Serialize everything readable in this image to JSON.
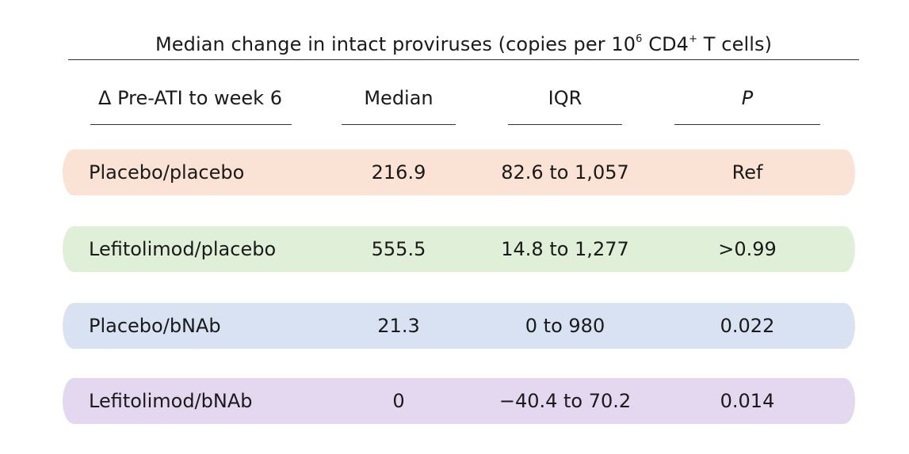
{
  "chart_data": {
    "type": "table",
    "title": {
      "prefix": "Median change in intact proviruses (copies per 10",
      "sup1": "6",
      "middle": " CD4",
      "sup2": "+",
      "suffix": " T cells)"
    },
    "columns": [
      "Δ Pre-ATI to week 6",
      "Median",
      "IQR",
      "P"
    ],
    "rows": [
      {
        "group": "Placebo/placebo",
        "median": "216.9",
        "iqr": "82.6 to 1,057",
        "p": "Ref",
        "color": "#fae2d4"
      },
      {
        "group": "Lefitolimod/placebo",
        "median": "555.5",
        "iqr": "14.8 to 1,277",
        "p": ">0.99",
        "color": "#e0efd8"
      },
      {
        "group": "Placebo/bNAb",
        "median": "21.3",
        "iqr": "0 to 980",
        "p": "0.022",
        "color": "#d9e2f2"
      },
      {
        "group": "Lefitolimod/bNAb",
        "median": "0",
        "iqr": "−40.4 to 70.2",
        "p": "0.014",
        "color": "#e4d8f0"
      }
    ]
  }
}
